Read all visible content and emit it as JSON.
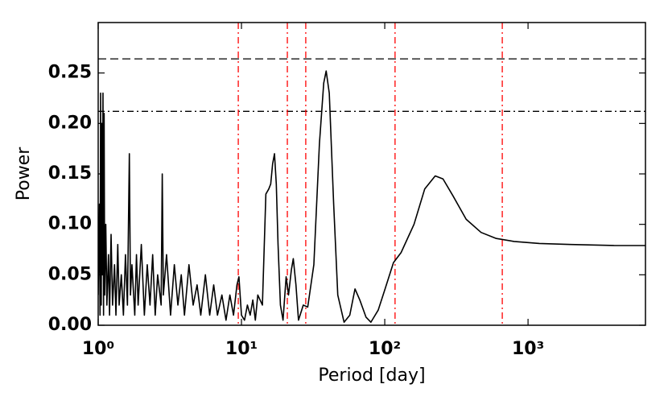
{
  "chart_data": {
    "type": "line",
    "xlabel": "Period [day]",
    "ylabel": "Power",
    "xscale": "log",
    "xlim": [
      1,
      6600
    ],
    "ylim": [
      0,
      0.3
    ],
    "xticks": [
      {
        "value": 1,
        "label": "10⁰"
      },
      {
        "value": 10,
        "label": "10¹"
      },
      {
        "value": 100,
        "label": "10²"
      },
      {
        "value": 1000,
        "label": "10³"
      }
    ],
    "yticks": [
      {
        "value": 0,
        "label": "0.00"
      },
      {
        "value": 0.05,
        "label": "0.05"
      },
      {
        "value": 0.1,
        "label": "0.10"
      },
      {
        "value": 0.15,
        "label": "0.15"
      },
      {
        "value": 0.2,
        "label": "0.20"
      },
      {
        "value": 0.25,
        "label": "0.25"
      }
    ],
    "hlines": [
      {
        "value": 0.264,
        "style": "dashed",
        "color": "#000000"
      },
      {
        "value": 0.212,
        "style": "dashdot",
        "color": "#000000"
      }
    ],
    "vlines": {
      "values": [
        9.5,
        20.9,
        28.1,
        118,
        661
      ],
      "color": "#ff0000",
      "style": "dashdot"
    },
    "series": [
      {
        "color": "#000000",
        "x": [
          1.0,
          1.02,
          1.03,
          1.04,
          1.05,
          1.06,
          1.07,
          1.08,
          1.09,
          1.1,
          1.11,
          1.13,
          1.15,
          1.18,
          1.2,
          1.23,
          1.26,
          1.3,
          1.33,
          1.37,
          1.4,
          1.45,
          1.5,
          1.55,
          1.6,
          1.65,
          1.68,
          1.72,
          1.8,
          1.85,
          1.9,
          2.0,
          2.1,
          2.2,
          2.3,
          2.4,
          2.5,
          2.6,
          2.75,
          2.8,
          2.85,
          3.0,
          3.2,
          3.4,
          3.6,
          3.8,
          4.0,
          4.3,
          4.6,
          4.9,
          5.2,
          5.6,
          6.0,
          6.4,
          6.8,
          7.3,
          7.8,
          8.3,
          8.8,
          9.3,
          9.6,
          10,
          10.5,
          11,
          11.5,
          12,
          12.5,
          13,
          14,
          14.8,
          15.5,
          16,
          16.5,
          17,
          17.5,
          18,
          18.7,
          19.5,
          20.5,
          21.3,
          22.3,
          23,
          24,
          25,
          27,
          29,
          32,
          35,
          37.5,
          39,
          41,
          44,
          47,
          52,
          57,
          62,
          67,
          74,
          80,
          90,
          100,
          115,
          130,
          160,
          190,
          225,
          255,
          300,
          370,
          470,
          600,
          800,
          1200,
          2000,
          4000,
          6600
        ],
        "values": [
          0.03,
          0.12,
          0.01,
          0.23,
          0.02,
          0.2,
          0.05,
          0.23,
          0.01,
          0.21,
          0.03,
          0.1,
          0.02,
          0.07,
          0.01,
          0.09,
          0.02,
          0.06,
          0.01,
          0.08,
          0.02,
          0.05,
          0.01,
          0.07,
          0.02,
          0.17,
          0.03,
          0.06,
          0.01,
          0.07,
          0.02,
          0.08,
          0.01,
          0.06,
          0.02,
          0.07,
          0.01,
          0.05,
          0.02,
          0.15,
          0.03,
          0.07,
          0.01,
          0.06,
          0.02,
          0.05,
          0.01,
          0.06,
          0.02,
          0.04,
          0.01,
          0.05,
          0.01,
          0.04,
          0.01,
          0.03,
          0.005,
          0.03,
          0.01,
          0.04,
          0.048,
          0.01,
          0.005,
          0.02,
          0.01,
          0.025,
          0.005,
          0.03,
          0.02,
          0.13,
          0.135,
          0.14,
          0.16,
          0.17,
          0.14,
          0.08,
          0.02,
          0.005,
          0.048,
          0.03,
          0.055,
          0.066,
          0.04,
          0.005,
          0.02,
          0.018,
          0.06,
          0.18,
          0.24,
          0.252,
          0.23,
          0.12,
          0.03,
          0.003,
          0.01,
          0.036,
          0.025,
          0.008,
          0.003,
          0.015,
          0.035,
          0.062,
          0.072,
          0.1,
          0.135,
          0.148,
          0.145,
          0.128,
          0.105,
          0.092,
          0.086,
          0.083,
          0.081,
          0.08,
          0.079,
          0.079
        ]
      }
    ]
  }
}
